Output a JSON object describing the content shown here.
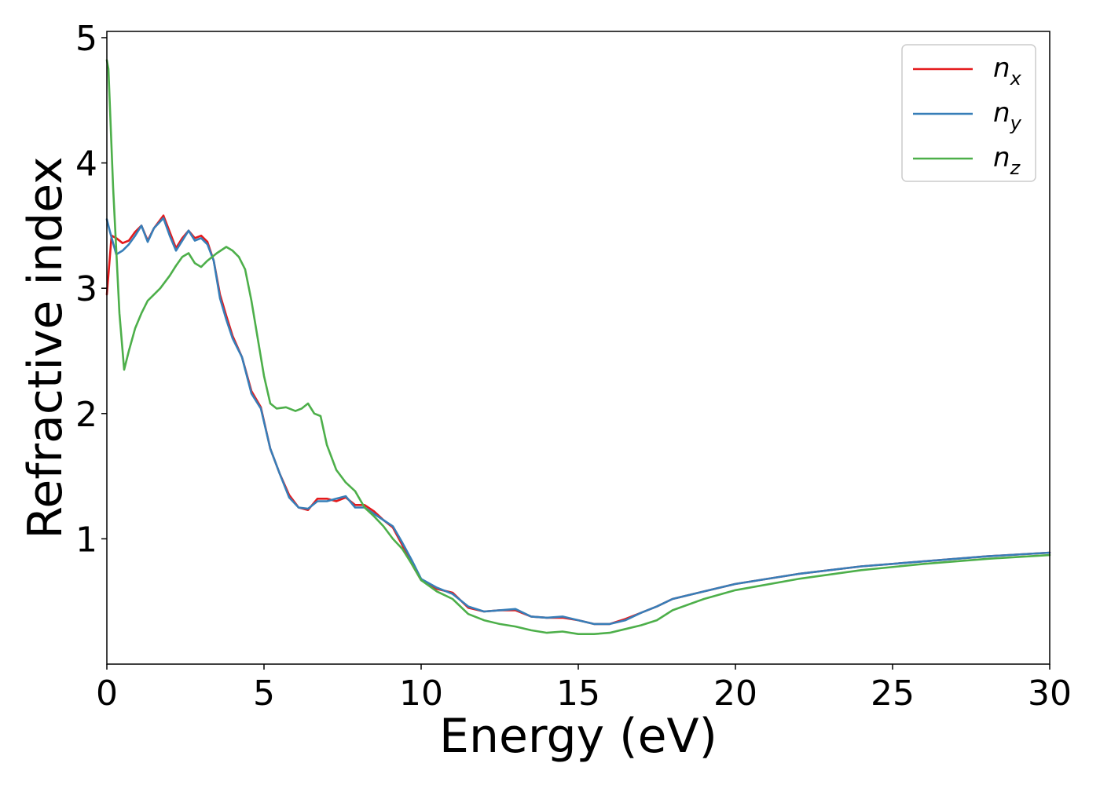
{
  "chart_data": {
    "type": "line",
    "title": "",
    "xlabel": "Energy (eV)",
    "ylabel": "Refractive index",
    "xlim": [
      0,
      30
    ],
    "ylim": [
      0.0,
      5.05
    ],
    "xticks": [
      0,
      5,
      10,
      15,
      20,
      25,
      30
    ],
    "yticks": [
      1,
      2,
      3,
      4,
      5
    ],
    "grid": false,
    "legend_position": "top-right",
    "series": [
      {
        "name": "n_x",
        "label_base": "n",
        "label_sub": "x",
        "color": "#e41a1c",
        "x": [
          0,
          0.15,
          0.3,
          0.5,
          0.7,
          0.9,
          1.1,
          1.3,
          1.5,
          1.8,
          2.0,
          2.2,
          2.4,
          2.6,
          2.8,
          3.0,
          3.2,
          3.4,
          3.6,
          3.8,
          4.0,
          4.3,
          4.6,
          4.9,
          5.2,
          5.5,
          5.8,
          6.1,
          6.4,
          6.7,
          7.0,
          7.3,
          7.6,
          7.9,
          8.2,
          8.5,
          8.8,
          9.1,
          9.4,
          9.7,
          10.0,
          10.5,
          11.0,
          11.5,
          12.0,
          12.5,
          13.0,
          13.5,
          14.0,
          14.5,
          15.0,
          15.5,
          16.0,
          16.5,
          17.0,
          17.5,
          18.0,
          19.0,
          20.0,
          22.0,
          24.0,
          26.0,
          28.0,
          30.0
        ],
        "y": [
          2.95,
          3.42,
          3.4,
          3.36,
          3.38,
          3.45,
          3.5,
          3.38,
          3.48,
          3.58,
          3.45,
          3.32,
          3.4,
          3.46,
          3.4,
          3.42,
          3.37,
          3.22,
          2.95,
          2.78,
          2.62,
          2.45,
          2.18,
          2.05,
          1.72,
          1.52,
          1.35,
          1.25,
          1.23,
          1.32,
          1.32,
          1.3,
          1.33,
          1.27,
          1.27,
          1.22,
          1.15,
          1.09,
          0.95,
          0.8,
          0.67,
          0.6,
          0.57,
          0.45,
          0.42,
          0.43,
          0.43,
          0.38,
          0.37,
          0.37,
          0.35,
          0.32,
          0.32,
          0.36,
          0.41,
          0.46,
          0.52,
          0.58,
          0.64,
          0.72,
          0.78,
          0.82,
          0.86,
          0.89
        ]
      },
      {
        "name": "n_y",
        "label_base": "n",
        "label_sub": "y",
        "color": "#377eb8",
        "x": [
          0,
          0.1,
          0.3,
          0.5,
          0.7,
          0.9,
          1.1,
          1.3,
          1.5,
          1.8,
          2.0,
          2.2,
          2.4,
          2.6,
          2.8,
          3.0,
          3.2,
          3.4,
          3.6,
          3.8,
          4.0,
          4.3,
          4.6,
          4.9,
          5.2,
          5.5,
          5.8,
          6.1,
          6.4,
          6.7,
          7.0,
          7.3,
          7.6,
          7.9,
          8.2,
          8.5,
          8.8,
          9.1,
          9.4,
          9.7,
          10.0,
          10.5,
          11.0,
          11.5,
          12.0,
          12.5,
          13.0,
          13.5,
          14.0,
          14.5,
          15.0,
          15.5,
          16.0,
          16.5,
          17.0,
          17.5,
          18.0,
          19.0,
          20.0,
          22.0,
          24.0,
          26.0,
          28.0,
          30.0
        ],
        "y": [
          3.55,
          3.45,
          3.27,
          3.3,
          3.35,
          3.42,
          3.5,
          3.37,
          3.48,
          3.56,
          3.42,
          3.3,
          3.38,
          3.46,
          3.38,
          3.4,
          3.35,
          3.22,
          2.92,
          2.75,
          2.6,
          2.45,
          2.16,
          2.04,
          1.72,
          1.52,
          1.33,
          1.25,
          1.24,
          1.3,
          1.3,
          1.32,
          1.34,
          1.25,
          1.25,
          1.2,
          1.15,
          1.1,
          0.97,
          0.83,
          0.68,
          0.61,
          0.56,
          0.46,
          0.42,
          0.43,
          0.44,
          0.38,
          0.37,
          0.38,
          0.35,
          0.32,
          0.32,
          0.35,
          0.41,
          0.46,
          0.52,
          0.58,
          0.64,
          0.72,
          0.78,
          0.82,
          0.86,
          0.89
        ]
      },
      {
        "name": "n_z",
        "label_base": "n",
        "label_sub": "z",
        "color": "#4daf4a",
        "x": [
          0,
          0.05,
          0.2,
          0.4,
          0.55,
          0.7,
          0.9,
          1.1,
          1.3,
          1.5,
          1.7,
          2.0,
          2.2,
          2.4,
          2.6,
          2.8,
          3.0,
          3.2,
          3.5,
          3.8,
          4.0,
          4.2,
          4.4,
          4.6,
          4.8,
          5.0,
          5.2,
          5.4,
          5.7,
          6.0,
          6.2,
          6.4,
          6.6,
          6.8,
          7.0,
          7.3,
          7.6,
          7.9,
          8.2,
          8.5,
          8.8,
          9.1,
          9.4,
          9.7,
          10.0,
          10.5,
          11.0,
          11.5,
          12.0,
          12.5,
          13.0,
          13.5,
          14.0,
          14.5,
          15.0,
          15.5,
          16.0,
          16.5,
          17.0,
          17.5,
          18.0,
          19.0,
          20.0,
          22.0,
          24.0,
          26.0,
          28.0,
          30.0
        ],
        "y": [
          4.82,
          4.75,
          3.8,
          2.8,
          2.35,
          2.5,
          2.68,
          2.8,
          2.9,
          2.95,
          3.0,
          3.1,
          3.18,
          3.25,
          3.28,
          3.2,
          3.17,
          3.22,
          3.28,
          3.33,
          3.3,
          3.25,
          3.15,
          2.9,
          2.6,
          2.3,
          2.08,
          2.04,
          2.05,
          2.02,
          2.04,
          2.08,
          2.0,
          1.98,
          1.75,
          1.55,
          1.45,
          1.38,
          1.25,
          1.18,
          1.1,
          1.0,
          0.92,
          0.8,
          0.67,
          0.58,
          0.52,
          0.4,
          0.35,
          0.32,
          0.3,
          0.27,
          0.25,
          0.26,
          0.24,
          0.24,
          0.25,
          0.28,
          0.31,
          0.35,
          0.43,
          0.52,
          0.59,
          0.68,
          0.75,
          0.8,
          0.84,
          0.87
        ]
      }
    ]
  }
}
